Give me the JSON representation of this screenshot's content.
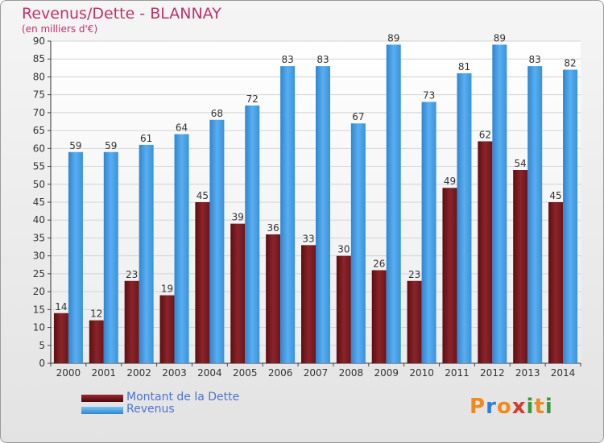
{
  "title": "Revenus/Dette - BLANNAY",
  "subtitle": "(en milliers d'€)",
  "chart_data": {
    "type": "bar",
    "categories": [
      "2000",
      "2001",
      "2002",
      "2003",
      "2004",
      "2005",
      "2006",
      "2007",
      "2008",
      "2009",
      "2010",
      "2011",
      "2012",
      "2013",
      "2014"
    ],
    "series": [
      {
        "name": "Montant de la Dette",
        "values": [
          14,
          12,
          23,
          19,
          45,
          39,
          36,
          33,
          30,
          26,
          23,
          49,
          62,
          54,
          45
        ],
        "color": "#7b1a1f"
      },
      {
        "name": "Revenus",
        "values": [
          59,
          59,
          61,
          64,
          68,
          72,
          83,
          83,
          67,
          89,
          73,
          81,
          89,
          83,
          82
        ],
        "color": "#4aa3e8"
      }
    ],
    "ylim": [
      0,
      90
    ],
    "yticks": [
      0,
      5,
      10,
      15,
      20,
      25,
      30,
      35,
      40,
      45,
      50,
      55,
      60,
      65,
      70,
      75,
      80,
      85,
      90
    ],
    "grid": true,
    "legend": "bottom-left"
  },
  "logo": {
    "letters": [
      "P",
      "r",
      "o",
      "x",
      "i",
      "t",
      "i"
    ],
    "colors": [
      "#f08a1c",
      "#2f7fd6",
      "#f08a1c",
      "#d63a2f",
      "#3a9a3a",
      "#f08a1c",
      "#3a9a3a"
    ]
  }
}
